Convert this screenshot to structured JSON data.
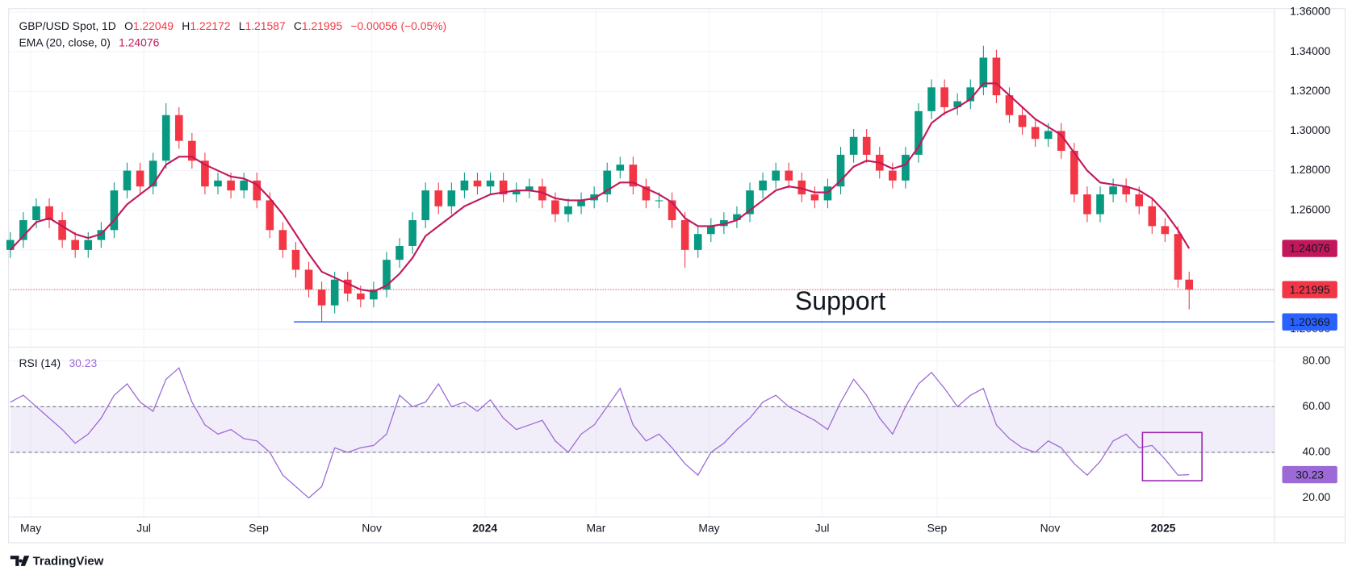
{
  "header": {
    "symbol": "GBP/USD Spot, 1D",
    "ohlc": [
      {
        "label": "O",
        "value": 1.22049
      },
      {
        "label": "H",
        "value": 1.22172
      },
      {
        "label": "L",
        "value": 1.21587
      },
      {
        "label": "C",
        "value": 1.21995
      }
    ],
    "change": "−0.00056 (−0.05%)"
  },
  "brand": "TradingView",
  "chart_data": [
    {
      "type": "candlestick",
      "x": [
        0,
        7,
        14,
        21,
        28,
        35,
        42,
        49,
        56,
        63,
        70,
        77,
        84,
        91,
        98,
        105,
        112,
        119,
        126,
        133,
        140,
        147,
        154,
        161,
        168,
        175,
        182,
        189,
        196,
        203,
        210,
        217,
        224,
        231,
        238,
        245,
        252,
        259,
        266,
        273,
        280,
        287,
        294,
        301,
        308,
        315,
        322,
        329,
        336,
        343,
        350,
        357,
        364,
        371,
        378,
        385,
        392,
        399,
        406,
        413,
        420,
        427,
        434,
        441,
        448,
        455,
        462,
        469,
        476,
        483,
        490,
        497,
        504,
        511,
        518,
        525,
        532,
        539,
        546,
        553,
        560,
        567,
        574,
        581,
        588,
        595,
        602,
        609,
        616,
        623,
        630,
        636
      ],
      "open": [
        1.24,
        1.245,
        1.255,
        1.262,
        1.255,
        1.245,
        1.24,
        1.245,
        1.25,
        1.27,
        1.28,
        1.272,
        1.285,
        1.308,
        1.295,
        1.285,
        1.272,
        1.275,
        1.27,
        1.275,
        1.265,
        1.25,
        1.24,
        1.23,
        1.22,
        1.212,
        1.225,
        1.218,
        1.215,
        1.22,
        1.235,
        1.242,
        1.255,
        1.27,
        1.262,
        1.27,
        1.275,
        1.272,
        1.275,
        1.268,
        1.27,
        1.272,
        1.265,
        1.258,
        1.262,
        1.265,
        1.268,
        1.28,
        1.283,
        1.272,
        1.265,
        1.265,
        1.255,
        1.24,
        1.248,
        1.252,
        1.255,
        1.258,
        1.27,
        1.275,
        1.28,
        1.275,
        1.268,
        1.265,
        1.272,
        1.288,
        1.297,
        1.288,
        1.28,
        1.275,
        1.288,
        1.31,
        1.322,
        1.312,
        1.315,
        1.322,
        1.337,
        1.318,
        1.308,
        1.302,
        1.296,
        1.3,
        1.29,
        1.268,
        1.258,
        1.268,
        1.272,
        1.268,
        1.262,
        1.252,
        1.248,
        1.225
      ],
      "high": [
        1.249,
        1.259,
        1.266,
        1.266,
        1.259,
        1.249,
        1.249,
        1.254,
        1.274,
        1.284,
        1.284,
        1.289,
        1.314,
        1.312,
        1.299,
        1.289,
        1.279,
        1.279,
        1.279,
        1.279,
        1.269,
        1.254,
        1.244,
        1.234,
        1.224,
        1.229,
        1.229,
        1.222,
        1.224,
        1.239,
        1.246,
        1.259,
        1.274,
        1.274,
        1.274,
        1.279,
        1.279,
        1.279,
        1.279,
        1.274,
        1.276,
        1.276,
        1.269,
        1.266,
        1.269,
        1.272,
        1.284,
        1.287,
        1.287,
        1.276,
        1.269,
        1.269,
        1.259,
        1.252,
        1.256,
        1.259,
        1.262,
        1.274,
        1.279,
        1.284,
        1.284,
        1.279,
        1.272,
        1.276,
        1.292,
        1.301,
        1.301,
        1.292,
        1.284,
        1.292,
        1.314,
        1.326,
        1.326,
        1.319,
        1.326,
        1.343,
        1.341,
        1.322,
        1.312,
        1.306,
        1.304,
        1.304,
        1.294,
        1.272,
        1.272,
        1.276,
        1.276,
        1.272,
        1.266,
        1.256,
        1.252,
        1.229
      ],
      "low": [
        1.236,
        1.241,
        1.251,
        1.251,
        1.241,
        1.236,
        1.236,
        1.241,
        1.246,
        1.266,
        1.268,
        1.268,
        1.281,
        1.291,
        1.281,
        1.268,
        1.268,
        1.266,
        1.266,
        1.261,
        1.246,
        1.236,
        1.226,
        1.216,
        1.204,
        1.208,
        1.214,
        1.211,
        1.211,
        1.216,
        1.231,
        1.238,
        1.251,
        1.258,
        1.258,
        1.266,
        1.268,
        1.268,
        1.264,
        1.264,
        1.266,
        1.261,
        1.254,
        1.254,
        1.258,
        1.261,
        1.264,
        1.276,
        1.268,
        1.261,
        1.261,
        1.251,
        1.231,
        1.236,
        1.244,
        1.248,
        1.251,
        1.254,
        1.266,
        1.271,
        1.271,
        1.264,
        1.261,
        1.261,
        1.268,
        1.284,
        1.284,
        1.276,
        1.271,
        1.271,
        1.284,
        1.306,
        1.308,
        1.308,
        1.311,
        1.318,
        1.314,
        1.304,
        1.298,
        1.292,
        1.292,
        1.286,
        1.264,
        1.254,
        1.254,
        1.264,
        1.264,
        1.258,
        1.248,
        1.244,
        1.221,
        1.21
      ],
      "close": [
        1.245,
        1.255,
        1.262,
        1.255,
        1.245,
        1.24,
        1.245,
        1.25,
        1.27,
        1.28,
        1.272,
        1.285,
        1.308,
        1.295,
        1.285,
        1.272,
        1.275,
        1.27,
        1.275,
        1.265,
        1.25,
        1.24,
        1.23,
        1.22,
        1.212,
        1.225,
        1.218,
        1.215,
        1.22,
        1.235,
        1.242,
        1.255,
        1.27,
        1.262,
        1.27,
        1.275,
        1.272,
        1.275,
        1.268,
        1.27,
        1.272,
        1.265,
        1.258,
        1.262,
        1.265,
        1.268,
        1.28,
        1.283,
        1.272,
        1.265,
        1.265,
        1.255,
        1.24,
        1.248,
        1.252,
        1.255,
        1.258,
        1.27,
        1.275,
        1.28,
        1.275,
        1.268,
        1.265,
        1.272,
        1.288,
        1.297,
        1.288,
        1.28,
        1.275,
        1.288,
        1.31,
        1.322,
        1.312,
        1.315,
        1.322,
        1.337,
        1.318,
        1.308,
        1.302,
        1.296,
        1.3,
        1.29,
        1.268,
        1.258,
        1.268,
        1.272,
        1.268,
        1.262,
        1.252,
        1.248,
        1.225,
        1.22
      ],
      "up_color": "#089981",
      "down_color": "#f23645",
      "series": [
        {
          "name": "EMA (20, close, 0)",
          "color": "#c2185b",
          "values": [
            1.24,
            1.247,
            1.254,
            1.256,
            1.252,
            1.248,
            1.246,
            1.248,
            1.255,
            1.263,
            1.268,
            1.273,
            1.283,
            1.287,
            1.287,
            1.283,
            1.28,
            1.277,
            1.276,
            1.273,
            1.266,
            1.258,
            1.248,
            1.238,
            1.229,
            1.226,
            1.223,
            1.22,
            1.219,
            1.222,
            1.228,
            1.236,
            1.247,
            1.252,
            1.257,
            1.262,
            1.265,
            1.268,
            1.269,
            1.27,
            1.27,
            1.269,
            1.266,
            1.265,
            1.265,
            1.266,
            1.27,
            1.274,
            1.274,
            1.271,
            1.268,
            1.264,
            1.256,
            1.252,
            1.252,
            1.253,
            1.255,
            1.26,
            1.265,
            1.27,
            1.272,
            1.271,
            1.269,
            1.269,
            1.275,
            1.282,
            1.285,
            1.284,
            1.281,
            1.283,
            1.292,
            1.304,
            1.309,
            1.312,
            1.316,
            1.324,
            1.324,
            1.318,
            1.312,
            1.306,
            1.302,
            1.298,
            1.289,
            1.28,
            1.274,
            1.273,
            1.272,
            1.27,
            1.266,
            1.259,
            1.25,
            1.24076
          ]
        }
      ],
      "last_price_color": "#f23645",
      "support": {
        "label": "Support",
        "value": 1.20369,
        "x_start": 153,
        "color": "#2962ff"
      },
      "xlim": [
        0,
        682
      ],
      "xticks": [
        {
          "value": 11,
          "label": "May"
        },
        {
          "value": 72,
          "label": "Jul"
        },
        {
          "value": 134,
          "label": "Sep"
        },
        {
          "value": 195,
          "label": "Nov"
        },
        {
          "value": 256,
          "label": "2024"
        },
        {
          "value": 316,
          "label": "Mar"
        },
        {
          "value": 377,
          "label": "May"
        },
        {
          "value": 438,
          "label": "Jul"
        },
        {
          "value": 500,
          "label": "Sep"
        },
        {
          "value": 561,
          "label": "Nov"
        },
        {
          "value": 622,
          "label": "2025"
        }
      ],
      "ylim": [
        1.1909,
        1.3617
      ],
      "yticks": [
        {
          "value": 1.2,
          "label": "1.20000"
        },
        {
          "value": 1.22,
          "label": "1.22000"
        },
        {
          "value": 1.24,
          "label": "1.24000"
        },
        {
          "value": 1.26,
          "label": "1.26000"
        },
        {
          "value": 1.28,
          "label": "1.28000"
        },
        {
          "value": 1.3,
          "label": "1.30000"
        },
        {
          "value": 1.32,
          "label": "1.32000"
        },
        {
          "value": 1.34,
          "label": "1.34000"
        },
        {
          "value": 1.36,
          "label": "1.36000"
        }
      ],
      "grid": true
    },
    {
      "type": "line",
      "series": [
        {
          "name": "RSI (14)",
          "color": "#9c6ad6",
          "values": [
            62,
            65,
            60,
            55,
            50,
            44,
            48,
            55,
            65,
            70,
            62,
            58,
            72,
            77,
            62,
            52,
            48,
            50,
            46,
            45,
            40,
            30,
            25,
            20,
            25,
            42,
            40,
            42,
            43,
            48,
            65,
            60,
            62,
            70,
            60,
            62,
            58,
            63,
            55,
            50,
            52,
            54,
            45,
            40,
            48,
            52,
            60,
            68,
            52,
            45,
            48,
            42,
            35,
            30,
            40,
            44,
            50,
            55,
            62,
            65,
            60,
            57,
            54,
            50,
            62,
            72,
            65,
            55,
            48,
            60,
            70,
            75,
            68,
            60,
            65,
            68,
            52,
            46,
            42,
            40,
            45,
            42,
            35,
            30,
            36,
            45,
            48,
            42,
            43,
            37,
            30,
            30.23
          ]
        }
      ],
      "band": [
        40,
        60
      ],
      "ylim": [
        11.7,
        85.3
      ],
      "yticks": [
        {
          "value": 20,
          "label": "20.00"
        },
        {
          "value": 40,
          "label": "40.00"
        },
        {
          "value": 60,
          "label": "60.00"
        },
        {
          "value": 80,
          "label": "80.00"
        }
      ],
      "grid": true
    }
  ]
}
